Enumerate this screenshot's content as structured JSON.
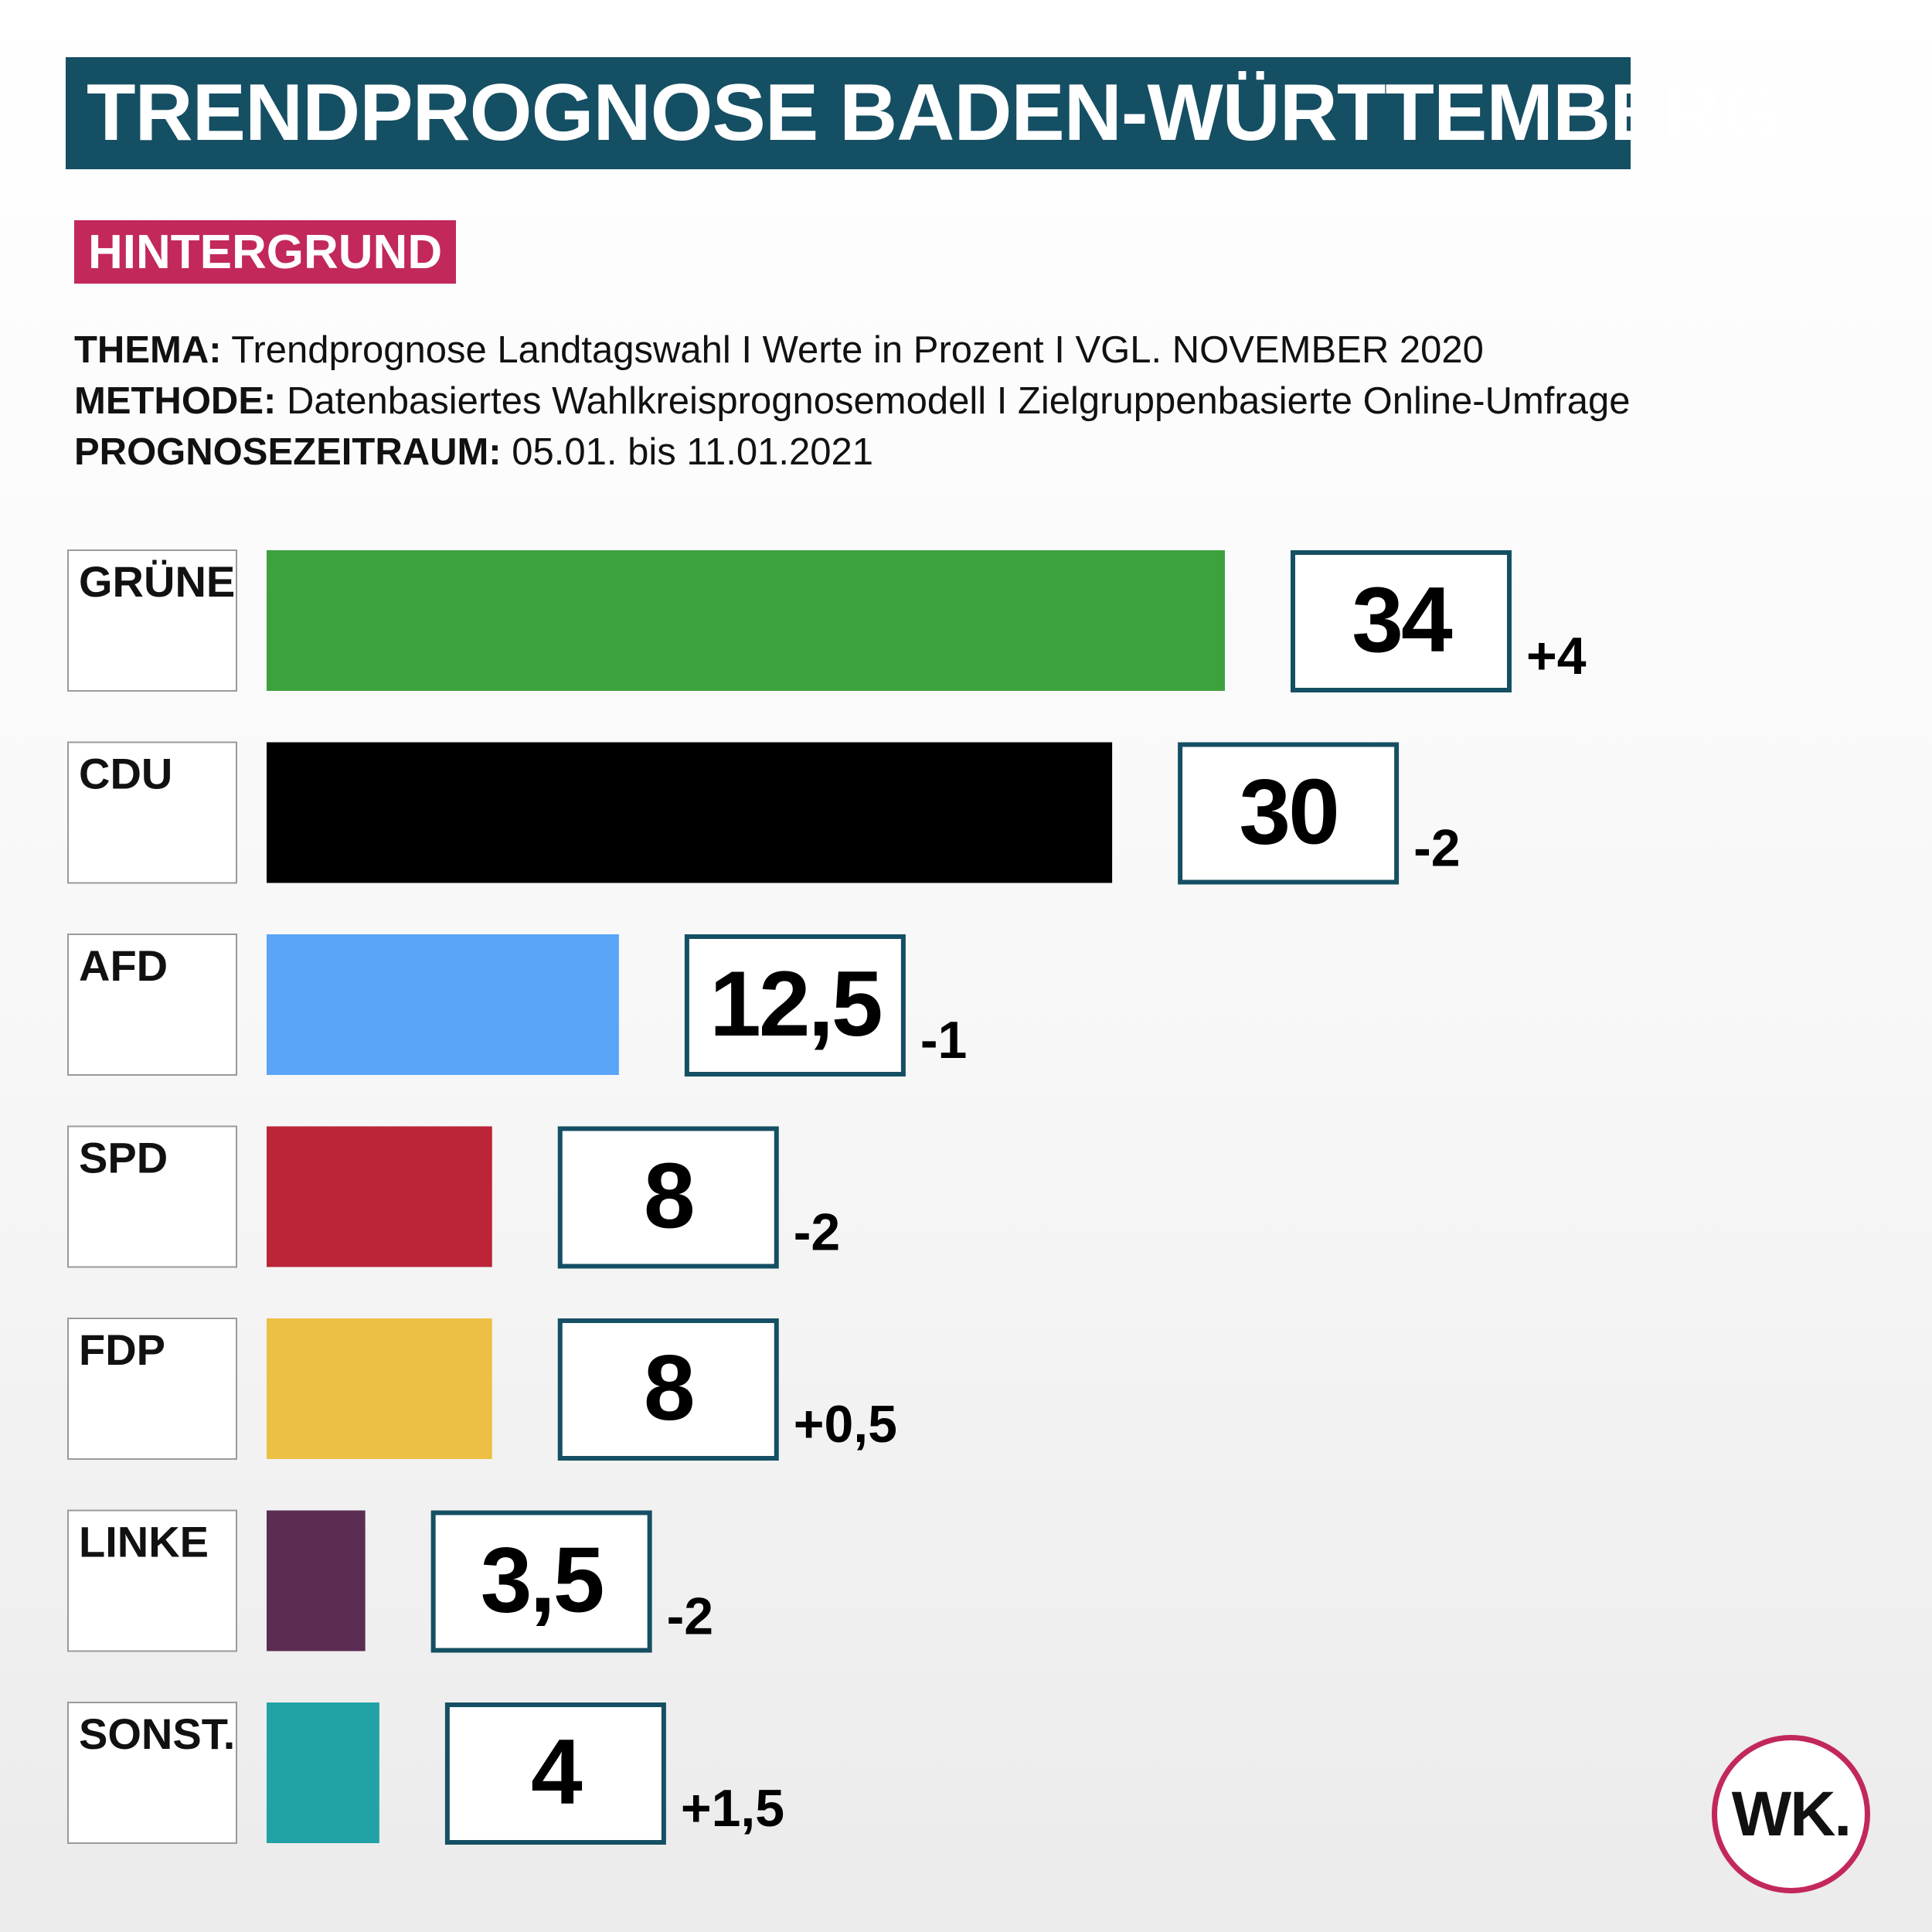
{
  "header": {
    "title": "TRENDPROGNOSE BADEN-WÜRTTEMBERG.",
    "tag": "HINTERGRUND"
  },
  "meta": {
    "thema_label": "THEMA:",
    "thema_value": "Trendprognose Landtagswahl I Werte in Prozent I VGL. NOVEMBER 2020",
    "methode_label": "METHODE:",
    "methode_value": "Datenbasiertes Wahlkreisprognosemodell I Zielgruppenbasierte Online-Umfrage",
    "zeitraum_label": "PROGNOSEZEITRAUM:",
    "zeitraum_value": "05.01. bis 11.01.2021"
  },
  "logo": {
    "text": "WK."
  },
  "colors": {
    "title_bg": "#154f63",
    "tag_bg": "#c2285a",
    "value_box_border": "#154f63"
  },
  "chart_data": {
    "type": "bar",
    "orientation": "horizontal",
    "categories": [
      "GRÜNE",
      "CDU",
      "AFD",
      "SPD",
      "FDP",
      "LINKE",
      "SONST."
    ],
    "values": [
      34,
      30,
      12.5,
      8,
      8,
      3.5,
      4
    ],
    "value_labels": [
      "34",
      "30",
      "12,5",
      "8",
      "8",
      "3,5",
      "4"
    ],
    "change_labels": [
      "+4",
      "-2",
      "-1",
      "-2",
      "+0,5",
      "-2",
      "+1,5"
    ],
    "bar_colors": [
      "#3da23d",
      "#000000",
      "#5aa5f7",
      "#bb2537",
      "#ecc044",
      "#5b2d53",
      "#22a2a6"
    ],
    "legend": "none",
    "grid": false
  }
}
